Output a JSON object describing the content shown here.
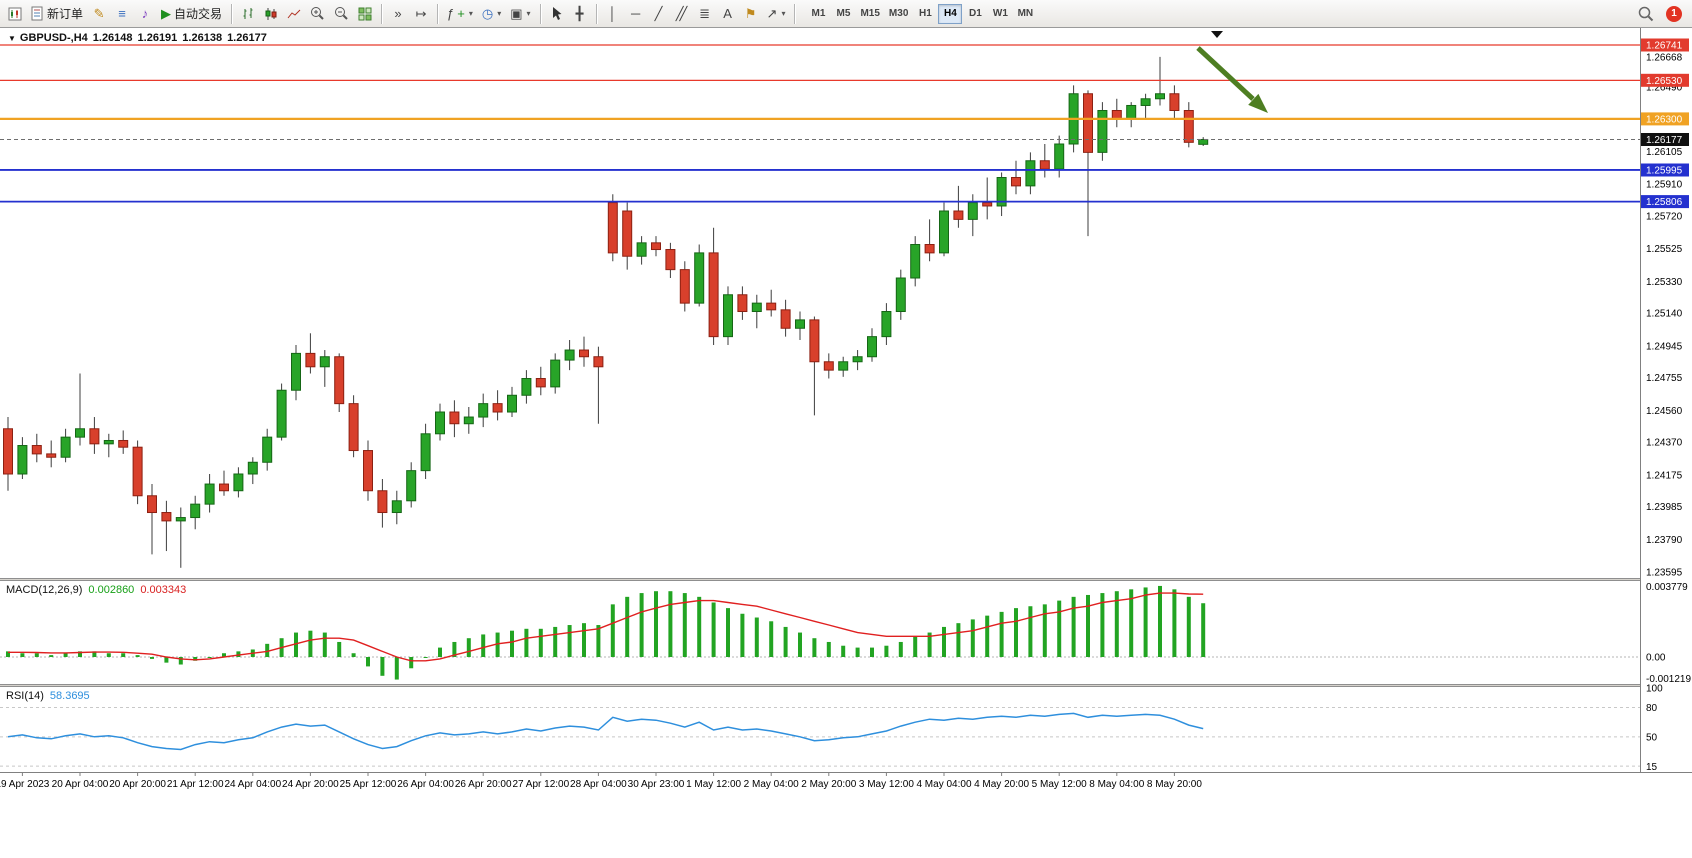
{
  "toolbar": {
    "new_order_label": "新订单",
    "auto_trading_label": "自动交易",
    "timeframes": [
      "M1",
      "M5",
      "M15",
      "M30",
      "H1",
      "H4",
      "D1",
      "W1",
      "MN"
    ],
    "active_timeframe": "H4",
    "notification_count": "1",
    "icons": {
      "window_marker": "▼",
      "metaeditor": "✎",
      "market_watch": "≡",
      "alerts": "♪",
      "auto_trading_play": "▶",
      "auto_scroll": "»",
      "chart_shift": "↦",
      "indicators": "ƒ",
      "indicators_plus": "+",
      "periods": "◷",
      "template": "▣",
      "crosshair": "╋",
      "vertical_line": "│",
      "horizontal_line": "─",
      "trend_line": "╱",
      "channel": "╱╱",
      "fibonacci": "≣",
      "text": "A",
      "label": "⚑",
      "shapes": "↗",
      "dropdown": "▾"
    }
  },
  "chart_header": {
    "symbol_title": "GBPUSD-,H4",
    "open": "1.26148",
    "high": "1.26191",
    "low": "1.26138",
    "close": "1.26177"
  },
  "price_scale": {
    "plain_labels": [
      "1.26668",
      "1.26490",
      "1.26105",
      "1.25910",
      "1.25720",
      "1.25525",
      "1.25330",
      "1.25140",
      "1.24945",
      "1.24755",
      "1.24560",
      "1.24370",
      "1.24175",
      "1.23985",
      "1.23790",
      "1.23595"
    ],
    "badges": [
      {
        "value": "1.26741",
        "bg": "#e23b2e"
      },
      {
        "value": "1.26530",
        "bg": "#e23b2e"
      },
      {
        "value": "1.26300",
        "bg": "#f0a223"
      },
      {
        "value": "1.25995",
        "bg": "#2431cf"
      },
      {
        "value": "1.25806",
        "bg": "#2431cf"
      },
      {
        "value": "1.26177",
        "bg": "#101010"
      }
    ]
  },
  "overlay_lines": [
    {
      "price": 1.26741,
      "color": "#e8392b",
      "width": 1.3
    },
    {
      "price": 1.2653,
      "color": "#e8392b",
      "width": 1.3
    },
    {
      "price": 1.263,
      "color": "#f0a223",
      "width": 2.2
    },
    {
      "price": 1.25995,
      "color": "#2431cf",
      "width": 1.8
    },
    {
      "price": 1.25806,
      "color": "#2431cf",
      "width": 1.8
    }
  ],
  "bid_line": {
    "price": 1.26177,
    "color": "#6e6e6e"
  },
  "annotation_arrow": {
    "color": "#4e7e22"
  },
  "chart_data": {
    "type": "candlestick",
    "title": "GBPUSD-,H4",
    "symbol": "GBPUSD-",
    "timeframe": "H4",
    "price_range": [
      1.23577,
      1.2685
    ],
    "colors": {
      "up": "#28a428",
      "down": "#d8402c",
      "wick": "#3c3c3c"
    },
    "candles": [
      [
        1.2445,
        1.2452,
        1.2408,
        1.2418
      ],
      [
        1.2418,
        1.244,
        1.2415,
        1.2435
      ],
      [
        1.2435,
        1.2442,
        1.2425,
        1.243
      ],
      [
        1.243,
        1.2438,
        1.2422,
        1.2428
      ],
      [
        1.2428,
        1.2445,
        1.2425,
        1.244
      ],
      [
        1.244,
        1.2478,
        1.2435,
        1.2445
      ],
      [
        1.2445,
        1.2452,
        1.243,
        1.2436
      ],
      [
        1.2436,
        1.2442,
        1.2428,
        1.2438
      ],
      [
        1.2438,
        1.2444,
        1.243,
        1.2434
      ],
      [
        1.2434,
        1.2438,
        1.24,
        1.2405
      ],
      [
        1.2405,
        1.2412,
        1.237,
        1.2395
      ],
      [
        1.2395,
        1.2402,
        1.2372,
        1.239
      ],
      [
        1.239,
        1.2398,
        1.2362,
        1.2392
      ],
      [
        1.2392,
        1.2405,
        1.2385,
        1.24
      ],
      [
        1.24,
        1.2418,
        1.2395,
        1.2412
      ],
      [
        1.2412,
        1.242,
        1.2405,
        1.2408
      ],
      [
        1.2408,
        1.2422,
        1.2404,
        1.2418
      ],
      [
        1.2418,
        1.2428,
        1.2412,
        1.2425
      ],
      [
        1.2425,
        1.2445,
        1.242,
        1.244
      ],
      [
        1.244,
        1.2472,
        1.2438,
        1.2468
      ],
      [
        1.2468,
        1.2495,
        1.2462,
        1.249
      ],
      [
        1.249,
        1.2502,
        1.2478,
        1.2482
      ],
      [
        1.2482,
        1.2492,
        1.247,
        1.2488
      ],
      [
        1.2488,
        1.249,
        1.2455,
        1.246
      ],
      [
        1.246,
        1.2465,
        1.2428,
        1.2432
      ],
      [
        1.2432,
        1.2438,
        1.2402,
        1.2408
      ],
      [
        1.2408,
        1.2415,
        1.2386,
        1.2395
      ],
      [
        1.2395,
        1.2408,
        1.2388,
        1.2402
      ],
      [
        1.2402,
        1.2425,
        1.2398,
        1.242
      ],
      [
        1.242,
        1.2448,
        1.2415,
        1.2442
      ],
      [
        1.2442,
        1.246,
        1.2438,
        1.2455
      ],
      [
        1.2455,
        1.2462,
        1.244,
        1.2448
      ],
      [
        1.2448,
        1.2458,
        1.2442,
        1.2452
      ],
      [
        1.2452,
        1.2466,
        1.2446,
        1.246
      ],
      [
        1.246,
        1.2468,
        1.245,
        1.2455
      ],
      [
        1.2455,
        1.247,
        1.2452,
        1.2465
      ],
      [
        1.2465,
        1.248,
        1.246,
        1.2475
      ],
      [
        1.2475,
        1.2482,
        1.2465,
        1.247
      ],
      [
        1.247,
        1.249,
        1.2466,
        1.2486
      ],
      [
        1.2486,
        1.2498,
        1.248,
        1.2492
      ],
      [
        1.2492,
        1.25,
        1.2482,
        1.2488
      ],
      [
        1.2488,
        1.2494,
        1.2448,
        1.2482
      ],
      [
        1.258,
        1.2585,
        1.2545,
        1.255
      ],
      [
        1.2575,
        1.258,
        1.254,
        1.2548
      ],
      [
        1.2548,
        1.256,
        1.2543,
        1.2556
      ],
      [
        1.2556,
        1.256,
        1.2548,
        1.2552
      ],
      [
        1.2552,
        1.2556,
        1.2535,
        1.254
      ],
      [
        1.254,
        1.2545,
        1.2515,
        1.252
      ],
      [
        1.252,
        1.2555,
        1.2518,
        1.255
      ],
      [
        1.255,
        1.2565,
        1.2495,
        1.25
      ],
      [
        1.25,
        1.253,
        1.2495,
        1.2525
      ],
      [
        1.2525,
        1.253,
        1.251,
        1.2515
      ],
      [
        1.2515,
        1.2525,
        1.2505,
        1.252
      ],
      [
        1.252,
        1.2528,
        1.2512,
        1.2516
      ],
      [
        1.2516,
        1.2522,
        1.25,
        1.2505
      ],
      [
        1.2505,
        1.2515,
        1.2498,
        1.251
      ],
      [
        1.251,
        1.2512,
        1.2453,
        1.2485
      ],
      [
        1.2485,
        1.249,
        1.2475,
        1.248
      ],
      [
        1.248,
        1.2488,
        1.2476,
        1.2485
      ],
      [
        1.2485,
        1.2492,
        1.248,
        1.2488
      ],
      [
        1.2488,
        1.2505,
        1.2485,
        1.25
      ],
      [
        1.25,
        1.252,
        1.2495,
        1.2515
      ],
      [
        1.2515,
        1.254,
        1.251,
        1.2535
      ],
      [
        1.2535,
        1.256,
        1.253,
        1.2555
      ],
      [
        1.2555,
        1.257,
        1.2545,
        1.255
      ],
      [
        1.255,
        1.258,
        1.2548,
        1.2575
      ],
      [
        1.2575,
        1.259,
        1.2565,
        1.257
      ],
      [
        1.257,
        1.2585,
        1.256,
        1.258
      ],
      [
        1.258,
        1.2595,
        1.257,
        1.2578
      ],
      [
        1.2578,
        1.2598,
        1.2572,
        1.2595
      ],
      [
        1.2595,
        1.2605,
        1.2585,
        1.259
      ],
      [
        1.259,
        1.261,
        1.2585,
        1.2605
      ],
      [
        1.2605,
        1.2615,
        1.2595,
        1.26
      ],
      [
        1.26,
        1.262,
        1.2595,
        1.2615
      ],
      [
        1.2615,
        1.265,
        1.261,
        1.2645
      ],
      [
        1.2645,
        1.2647,
        1.256,
        1.261
      ],
      [
        1.261,
        1.264,
        1.2605,
        1.2635
      ],
      [
        1.2635,
        1.2642,
        1.2625,
        1.263
      ],
      [
        1.263,
        1.264,
        1.2625,
        1.2638
      ],
      [
        1.2638,
        1.2645,
        1.263,
        1.2642
      ],
      [
        1.2642,
        1.2667,
        1.2638,
        1.2645
      ],
      [
        1.2645,
        1.265,
        1.263,
        1.2635
      ],
      [
        1.2635,
        1.264,
        1.2613,
        1.2616
      ],
      [
        1.26148,
        1.26191,
        1.26138,
        1.26177
      ]
    ],
    "time_labels": [
      {
        "i": 1,
        "t": "19 Apr 2023"
      },
      {
        "i": 5,
        "t": "20 Apr 04:00"
      },
      {
        "i": 9,
        "t": "20 Apr 20:00"
      },
      {
        "i": 13,
        "t": "21 Apr 12:00"
      },
      {
        "i": 17,
        "t": "24 Apr 04:00"
      },
      {
        "i": 21,
        "t": "24 Apr 20:00"
      },
      {
        "i": 25,
        "t": "25 Apr 12:00"
      },
      {
        "i": 29,
        "t": "26 Apr 04:00"
      },
      {
        "i": 33,
        "t": "26 Apr 20:00"
      },
      {
        "i": 37,
        "t": "27 Apr 12:00"
      },
      {
        "i": 41,
        "t": "28 Apr 04:00"
      },
      {
        "i": 45,
        "t": "30 Apr 23:00"
      },
      {
        "i": 49,
        "t": "1 May 12:00"
      },
      {
        "i": 53,
        "t": "2 May 04:00"
      },
      {
        "i": 57,
        "t": "2 May 20:00"
      },
      {
        "i": 61,
        "t": "3 May 12:00"
      },
      {
        "i": 65,
        "t": "4 May 04:00"
      },
      {
        "i": 69,
        "t": "4 May 20:00"
      },
      {
        "i": 73,
        "t": "5 May 12:00"
      },
      {
        "i": 77,
        "t": "8 May 04:00"
      },
      {
        "i": 81,
        "t": "8 May 20:00"
      }
    ]
  },
  "macd": {
    "label": "MACD(12,26,9)",
    "main_value": "0.002860",
    "signal_value": "0.003343",
    "max_label": "0.003779",
    "zero_label": "0.00",
    "min_label": "-0.001219",
    "ylim": [
      -0.001219,
      0.003779
    ],
    "colors": {
      "histogram": "#22a422",
      "signal": "#e02020"
    },
    "histogram": [
      0.0003,
      0.0002,
      0.0002,
      0.0001,
      0.0002,
      0.0003,
      0.0003,
      0.0002,
      0.0002,
      0.0001,
      -0.0001,
      -0.0003,
      -0.0004,
      -0.0002,
      0.0,
      0.0002,
      0.0003,
      0.0004,
      0.0007,
      0.001,
      0.0013,
      0.0014,
      0.0013,
      0.0008,
      0.0002,
      -0.0005,
      -0.001,
      -0.0012,
      -0.0006,
      0.0,
      0.0005,
      0.0008,
      0.001,
      0.0012,
      0.0013,
      0.0014,
      0.0015,
      0.0015,
      0.0016,
      0.0017,
      0.0018,
      0.0017,
      0.0028,
      0.0032,
      0.0034,
      0.0035,
      0.0035,
      0.0034,
      0.0032,
      0.0029,
      0.0026,
      0.0023,
      0.0021,
      0.0019,
      0.0016,
      0.0013,
      0.001,
      0.0008,
      0.0006,
      0.0005,
      0.0005,
      0.0006,
      0.0008,
      0.0011,
      0.0013,
      0.0016,
      0.0018,
      0.002,
      0.0022,
      0.0024,
      0.0026,
      0.0027,
      0.0028,
      0.003,
      0.0032,
      0.0033,
      0.0034,
      0.0035,
      0.0036,
      0.0037,
      0.00378,
      0.0036,
      0.0032,
      0.00286
    ],
    "signal": [
      0.00025,
      0.00025,
      0.00024,
      0.00022,
      0.00022,
      0.00024,
      0.00026,
      0.00026,
      0.00025,
      0.0002,
      0.00015,
      0.0,
      -0.0001,
      -0.00015,
      -0.0001,
      0.0,
      0.0001,
      0.0002,
      0.0003,
      0.0005,
      0.0007,
      0.0009,
      0.001,
      0.001,
      0.0009,
      0.0006,
      0.0003,
      0.0,
      -0.0002,
      -0.0002,
      -0.0001,
      0.0001,
      0.0003,
      0.0005,
      0.0007,
      0.0008,
      0.001,
      0.0011,
      0.0012,
      0.0013,
      0.0014,
      0.0015,
      0.0018,
      0.0021,
      0.0024,
      0.0026,
      0.0028,
      0.0029,
      0.003,
      0.003,
      0.0029,
      0.0028,
      0.0027,
      0.0025,
      0.0023,
      0.0021,
      0.0019,
      0.0017,
      0.0015,
      0.0013,
      0.0012,
      0.0011,
      0.0011,
      0.0011,
      0.0011,
      0.0012,
      0.0013,
      0.0014,
      0.0016,
      0.0018,
      0.0019,
      0.0021,
      0.0023,
      0.0024,
      0.0026,
      0.0027,
      0.0029,
      0.003,
      0.0031,
      0.0033,
      0.0034,
      0.0034,
      0.00335,
      0.003343
    ]
  },
  "rsi": {
    "label": "RSI(14)",
    "value": "58.3695",
    "levels": [
      "100",
      "80",
      "50",
      "15"
    ],
    "level_lines": [
      80,
      50,
      20
    ],
    "ylim": [
      15,
      100
    ],
    "color": "#2e8fdd",
    "points": [
      50,
      52,
      49,
      48,
      51,
      53,
      50,
      51,
      49,
      44,
      40,
      38,
      37,
      42,
      45,
      44,
      47,
      49,
      55,
      60,
      63,
      61,
      62,
      55,
      48,
      42,
      38,
      40,
      46,
      51,
      54,
      52,
      53,
      55,
      53,
      55,
      58,
      56,
      59,
      61,
      60,
      57,
      70,
      66,
      68,
      67,
      64,
      60,
      65,
      57,
      60,
      57,
      58,
      56,
      53,
      50,
      46,
      47,
      49,
      50,
      53,
      56,
      61,
      65,
      68,
      67,
      69,
      68,
      70,
      71,
      70,
      72,
      71,
      73,
      74,
      70,
      72,
      71,
      72,
      73,
      72,
      68,
      62,
      58.37
    ]
  }
}
